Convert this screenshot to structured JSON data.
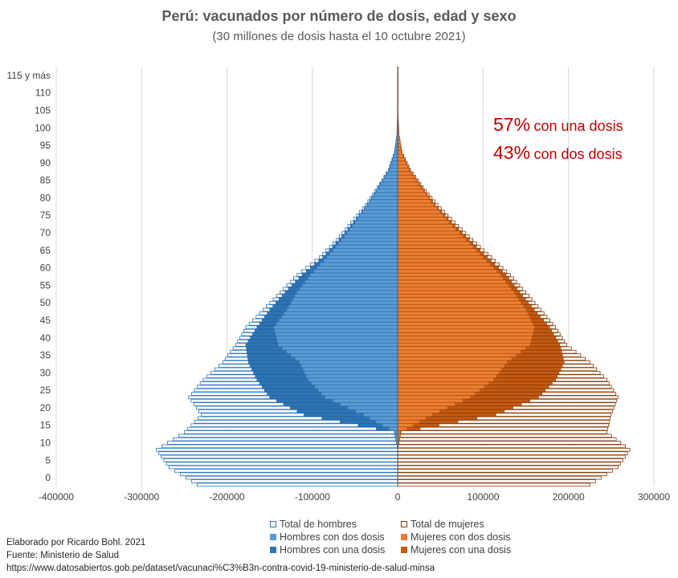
{
  "chart_data": {
    "type": "bar",
    "orientation": "horizontal",
    "title": "Perú: vacunados por número de dosis, edad y sexo",
    "subtitle": "(30 millones de dosis hasta el 10 octubre 2021)",
    "xlim": [
      -400000,
      300000
    ],
    "x_ticks": [
      -400000,
      -300000,
      -200000,
      -100000,
      0,
      100000,
      200000,
      300000
    ],
    "x_tick_labels": [
      "-400000",
      "-300000",
      "-200000",
      "-100000",
      "0",
      "100000",
      "200000",
      "300000"
    ],
    "y_tick_labels": [
      "0",
      "5",
      "10",
      "15",
      "20",
      "25",
      "30",
      "35",
      "40",
      "45",
      "50",
      "55",
      "60",
      "65",
      "70",
      "75",
      "80",
      "85",
      "90",
      "95",
      "100",
      "105",
      "110",
      "115 y más"
    ],
    "annotations": [
      {
        "pct": "57%",
        "text": "con una dosis"
      },
      {
        "pct": "43%",
        "text": "con dos dosis"
      }
    ],
    "legend": [
      {
        "name": "Total de hombres",
        "color": "#2e75b6",
        "style": "outline"
      },
      {
        "name": "Total de mujeres",
        "color": "#843c0c",
        "style": "outline"
      },
      {
        "name": "Hombres con dos dosis",
        "color": "#5b9bd5",
        "style": "fill"
      },
      {
        "name": "Mujeres con dos dosis",
        "color": "#ed7d31",
        "style": "fill"
      },
      {
        "name": "Hombres con una dosis",
        "color": "#2e75b6",
        "style": "fill"
      },
      {
        "name": "Mujeres con una dosis",
        "color": "#c55a11",
        "style": "fill"
      }
    ],
    "legend_position": "bottom",
    "ages": [
      0,
      5,
      10,
      15,
      20,
      25,
      30,
      35,
      40,
      45,
      50,
      55,
      60,
      65,
      70,
      75,
      80,
      85,
      90,
      95,
      100,
      105,
      110,
      115
    ],
    "series": [
      {
        "name": "Total de hombres",
        "values": [
          -235000,
          -268000,
          -283000,
          -250000,
          -230000,
          -245000,
          -228000,
          -205000,
          -190000,
          -178000,
          -158000,
          -138000,
          -118000,
          -92000,
          -72000,
          -55000,
          -38000,
          -24000,
          -11000,
          -4000,
          -1000,
          -400,
          -200,
          -100
        ]
      },
      {
        "name": "Total de mujeres",
        "values": [
          225000,
          258000,
          272000,
          245000,
          250000,
          258000,
          245000,
          225000,
          198000,
          185000,
          168000,
          150000,
          132000,
          110000,
          88000,
          67000,
          47000,
          30000,
          15000,
          5000,
          1500,
          500,
          200,
          100
        ]
      },
      {
        "name": "Hombres con dos dosis",
        "values": [
          0,
          0,
          0,
          -3000,
          -40000,
          -85000,
          -105000,
          -115000,
          -140000,
          -145000,
          -130000,
          -118000,
          -102000,
          -83000,
          -66000,
          -50000,
          -35000,
          -22000,
          -10000,
          -3500,
          -900,
          -350,
          -180,
          -90
        ]
      },
      {
        "name": "Mujeres con dos dosis",
        "values": [
          0,
          0,
          0,
          3000,
          40000,
          85000,
          112000,
          128000,
          155000,
          160000,
          150000,
          136000,
          120000,
          100000,
          80000,
          60000,
          42000,
          27000,
          13000,
          4500,
          1300,
          450,
          180,
          90
        ]
      },
      {
        "name": "Hombres con una dosis",
        "values": [
          0,
          0,
          0,
          -4000,
          -110000,
          -150000,
          -165000,
          -175000,
          -178000,
          -165000,
          -150000,
          -132000,
          -112000,
          -88000,
          -69000,
          -52000,
          -36000,
          -23000,
          -10500,
          -3800,
          -950,
          -380,
          -190,
          -95
        ]
      },
      {
        "name": "Mujeres con una dosis",
        "values": [
          0,
          0,
          0,
          4000,
          115000,
          165000,
          185000,
          195000,
          190000,
          178000,
          160000,
          143000,
          127000,
          105000,
          84000,
          63000,
          44000,
          28500,
          14000,
          4800,
          1400,
          480,
          190,
          95
        ]
      }
    ]
  },
  "credits": {
    "line1": "Elaborado por Ricardo Bohl. 2021",
    "line2": "Fuente: Ministerio de Salud",
    "line3": "https://www.datosabiertos.gob.pe/dataset/vacunaci%C3%B3n-contra-covid-19-ministerio-de-salud-minsa"
  }
}
